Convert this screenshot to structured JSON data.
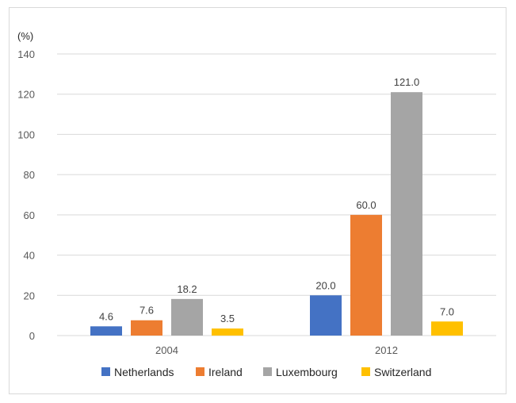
{
  "chart_data": {
    "type": "bar",
    "unit_label": "(%)",
    "categories": [
      "2004",
      "2012"
    ],
    "series": [
      {
        "name": "Netherlands",
        "color": "#4472c4",
        "values": [
          4.6,
          20.0
        ],
        "labels": [
          "4.6",
          "20.0"
        ]
      },
      {
        "name": "Ireland",
        "color": "#ed7d31",
        "values": [
          7.6,
          60.0
        ],
        "labels": [
          "7.6",
          "60.0"
        ]
      },
      {
        "name": "Luxembourg",
        "color": "#a5a5a5",
        "values": [
          18.2,
          121.0
        ],
        "labels": [
          "18.2",
          "121.0"
        ]
      },
      {
        "name": "Switzerland",
        "color": "#ffc000",
        "values": [
          3.5,
          7.0
        ],
        "labels": [
          "3.5",
          "7.0"
        ]
      }
    ],
    "ylim": [
      0,
      140
    ],
    "yticks": [
      "0",
      "20",
      "40",
      "60",
      "80",
      "100",
      "120",
      "140"
    ],
    "grid": true,
    "legend_position": "bottom"
  }
}
